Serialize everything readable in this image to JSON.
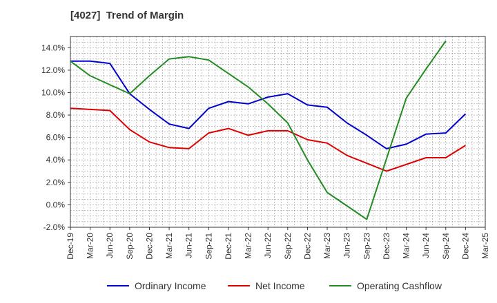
{
  "chart_data": {
    "type": "line",
    "title": "[4027]  Trend of Margin",
    "categories": [
      "Dec-19",
      "Mar-20",
      "Jun-20",
      "Sep-20",
      "Dec-20",
      "Mar-21",
      "Jun-21",
      "Sep-21",
      "Dec-21",
      "Mar-22",
      "Jun-22",
      "Sep-22",
      "Dec-22",
      "Mar-23",
      "Jun-23",
      "Sep-23",
      "Dec-23",
      "Mar-24",
      "Jun-24",
      "Sep-24",
      "Dec-24",
      "Mar-25"
    ],
    "yticks": [
      "14.0%",
      "12.0%",
      "10.0%",
      "8.0%",
      "6.0%",
      "4.0%",
      "2.0%",
      "0.0%",
      "-2.0%"
    ],
    "ylim": [
      -2.0,
      15.0
    ],
    "grid": true,
    "legend_position": "bottom",
    "series": [
      {
        "name": "Ordinary Income",
        "color": "#0000cc",
        "values": [
          12.8,
          12.8,
          12.6,
          9.9,
          8.5,
          7.2,
          6.8,
          8.6,
          9.2,
          9.0,
          9.6,
          9.9,
          8.9,
          8.7,
          7.3,
          6.2,
          5.0,
          5.4,
          6.3,
          6.4,
          8.1,
          null
        ]
      },
      {
        "name": "Net Income",
        "color": "#dd0000",
        "values": [
          8.6,
          8.5,
          8.4,
          6.7,
          5.6,
          5.1,
          5.0,
          6.4,
          6.8,
          6.2,
          6.6,
          6.6,
          5.8,
          5.5,
          4.4,
          3.7,
          3.0,
          3.6,
          4.2,
          4.2,
          5.3,
          null
        ]
      },
      {
        "name": "Operating Cashflow",
        "color": "#228b22",
        "values": [
          12.8,
          11.5,
          10.7,
          9.9,
          11.5,
          13.0,
          13.2,
          12.9,
          11.7,
          10.5,
          9.0,
          7.3,
          4.0,
          1.1,
          -0.1,
          -1.3,
          4.1,
          9.5,
          12.1,
          14.6,
          null,
          null
        ]
      }
    ]
  }
}
